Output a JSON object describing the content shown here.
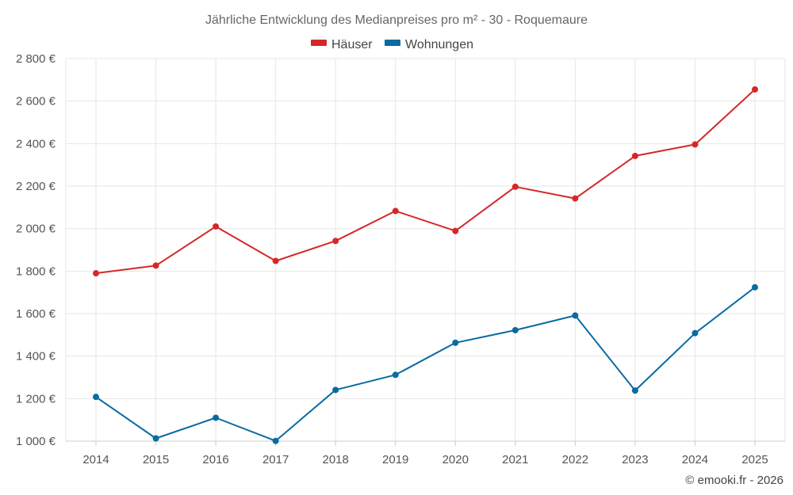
{
  "chart_data": {
    "type": "line",
    "title": "Jährliche Entwicklung des Medianpreises pro m² - 30 - Roquemaure",
    "xlabel": "",
    "ylabel": "",
    "categories": [
      "2014",
      "2015",
      "2016",
      "2017",
      "2018",
      "2019",
      "2020",
      "2021",
      "2022",
      "2023",
      "2024",
      "2025"
    ],
    "ylim": [
      1000,
      2800
    ],
    "yticks": [
      1000,
      1200,
      1400,
      1600,
      1800,
      2000,
      2200,
      2400,
      2600,
      2800
    ],
    "ytick_labels": [
      "1 000 €",
      "1 200 €",
      "1 400 €",
      "1 600 €",
      "1 800 €",
      "2 000 €",
      "2 200 €",
      "2 400 €",
      "2 600 €",
      "2 800 €"
    ],
    "grid": true,
    "legend_position": "top-center",
    "series": [
      {
        "name": "Häuser",
        "color": "#d62728",
        "values": [
          1790,
          1826,
          2010,
          1848,
          1942,
          2083,
          1989,
          2197,
          2142,
          2342,
          2396,
          2655
        ]
      },
      {
        "name": "Wohnungen",
        "color": "#0a6aa1",
        "values": [
          1208,
          1013,
          1110,
          1001,
          1241,
          1312,
          1463,
          1522,
          1591,
          1238,
          1508,
          1724
        ]
      }
    ],
    "credit": "© emooki.fr - 2026"
  }
}
